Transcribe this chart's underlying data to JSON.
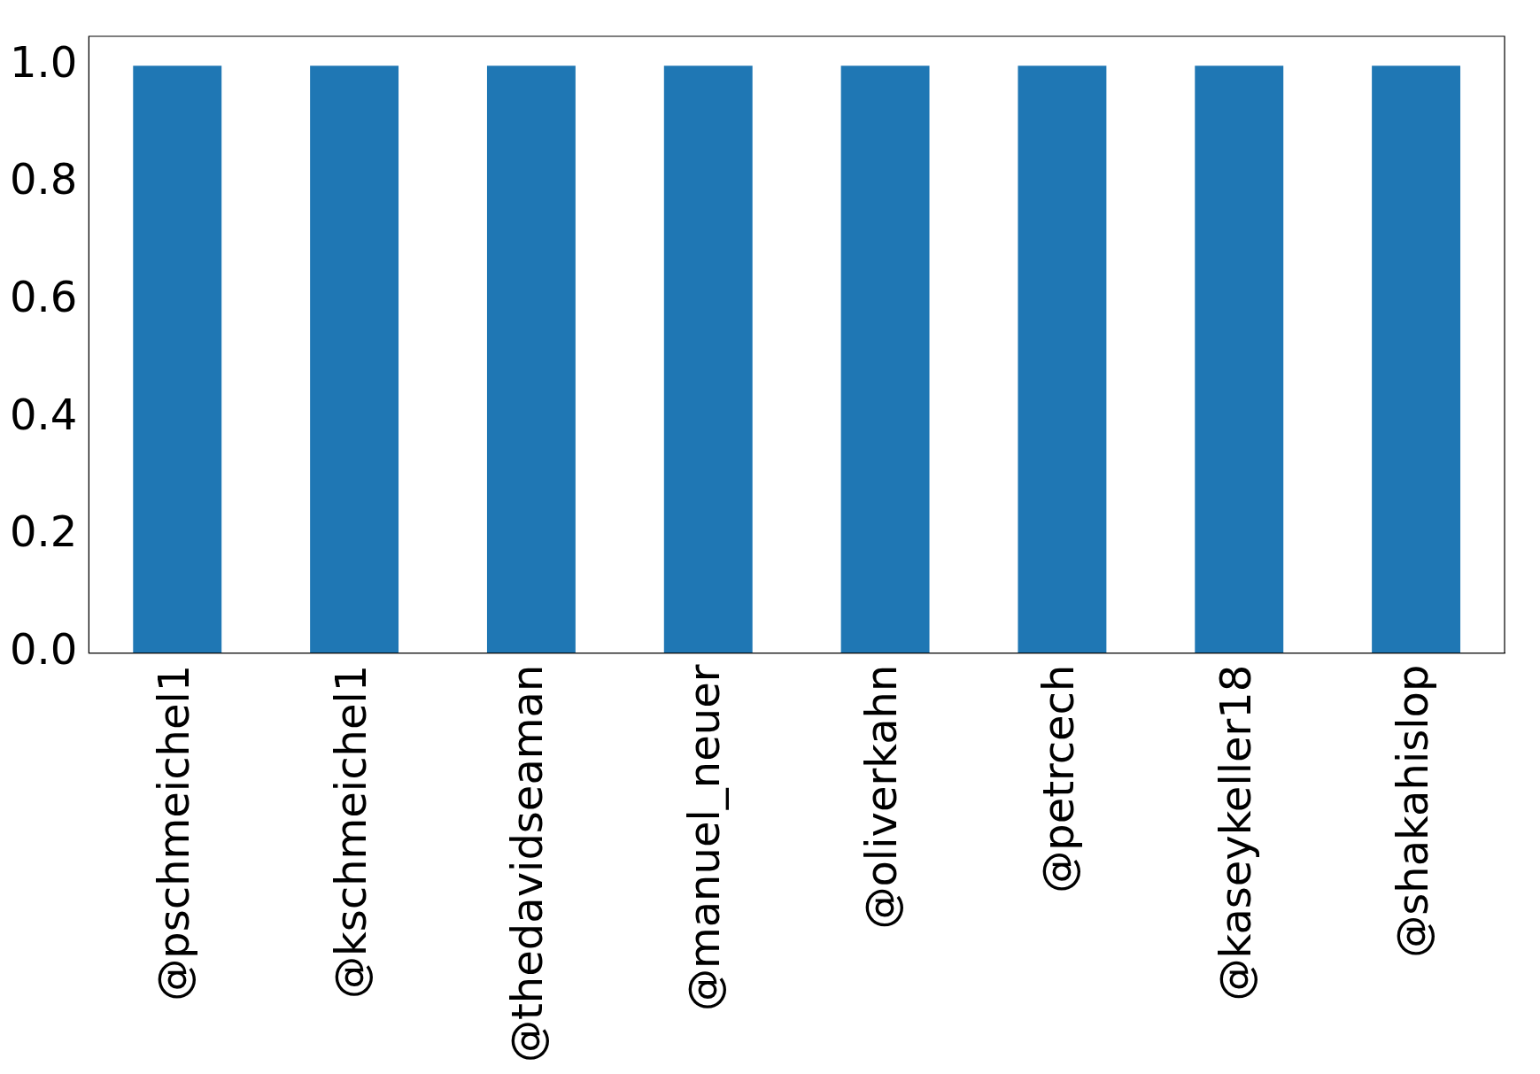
{
  "chart_data": {
    "type": "bar",
    "categories": [
      "@pschmeichel1",
      "@kschmeichel1",
      "@thedavidseaman",
      "@manuel_neuer",
      "@oliverkahn",
      "@petrcech",
      "@kaseykeller18",
      "@shakahislop"
    ],
    "values": [
      1,
      1,
      1,
      1,
      1,
      1,
      1,
      1
    ],
    "color": "#1f77b4",
    "ylim": [
      0,
      1.05
    ],
    "yticks": [
      {
        "value": 0,
        "label": "0.0"
      },
      {
        "value": 0.2,
        "label": "0.2"
      },
      {
        "value": 0.4,
        "label": "0.4"
      },
      {
        "value": 0.6,
        "label": "0.6"
      },
      {
        "value": 0.8,
        "label": "0.8"
      },
      {
        "value": 1,
        "label": "1.0"
      }
    ],
    "grid": false,
    "legend": false
  }
}
